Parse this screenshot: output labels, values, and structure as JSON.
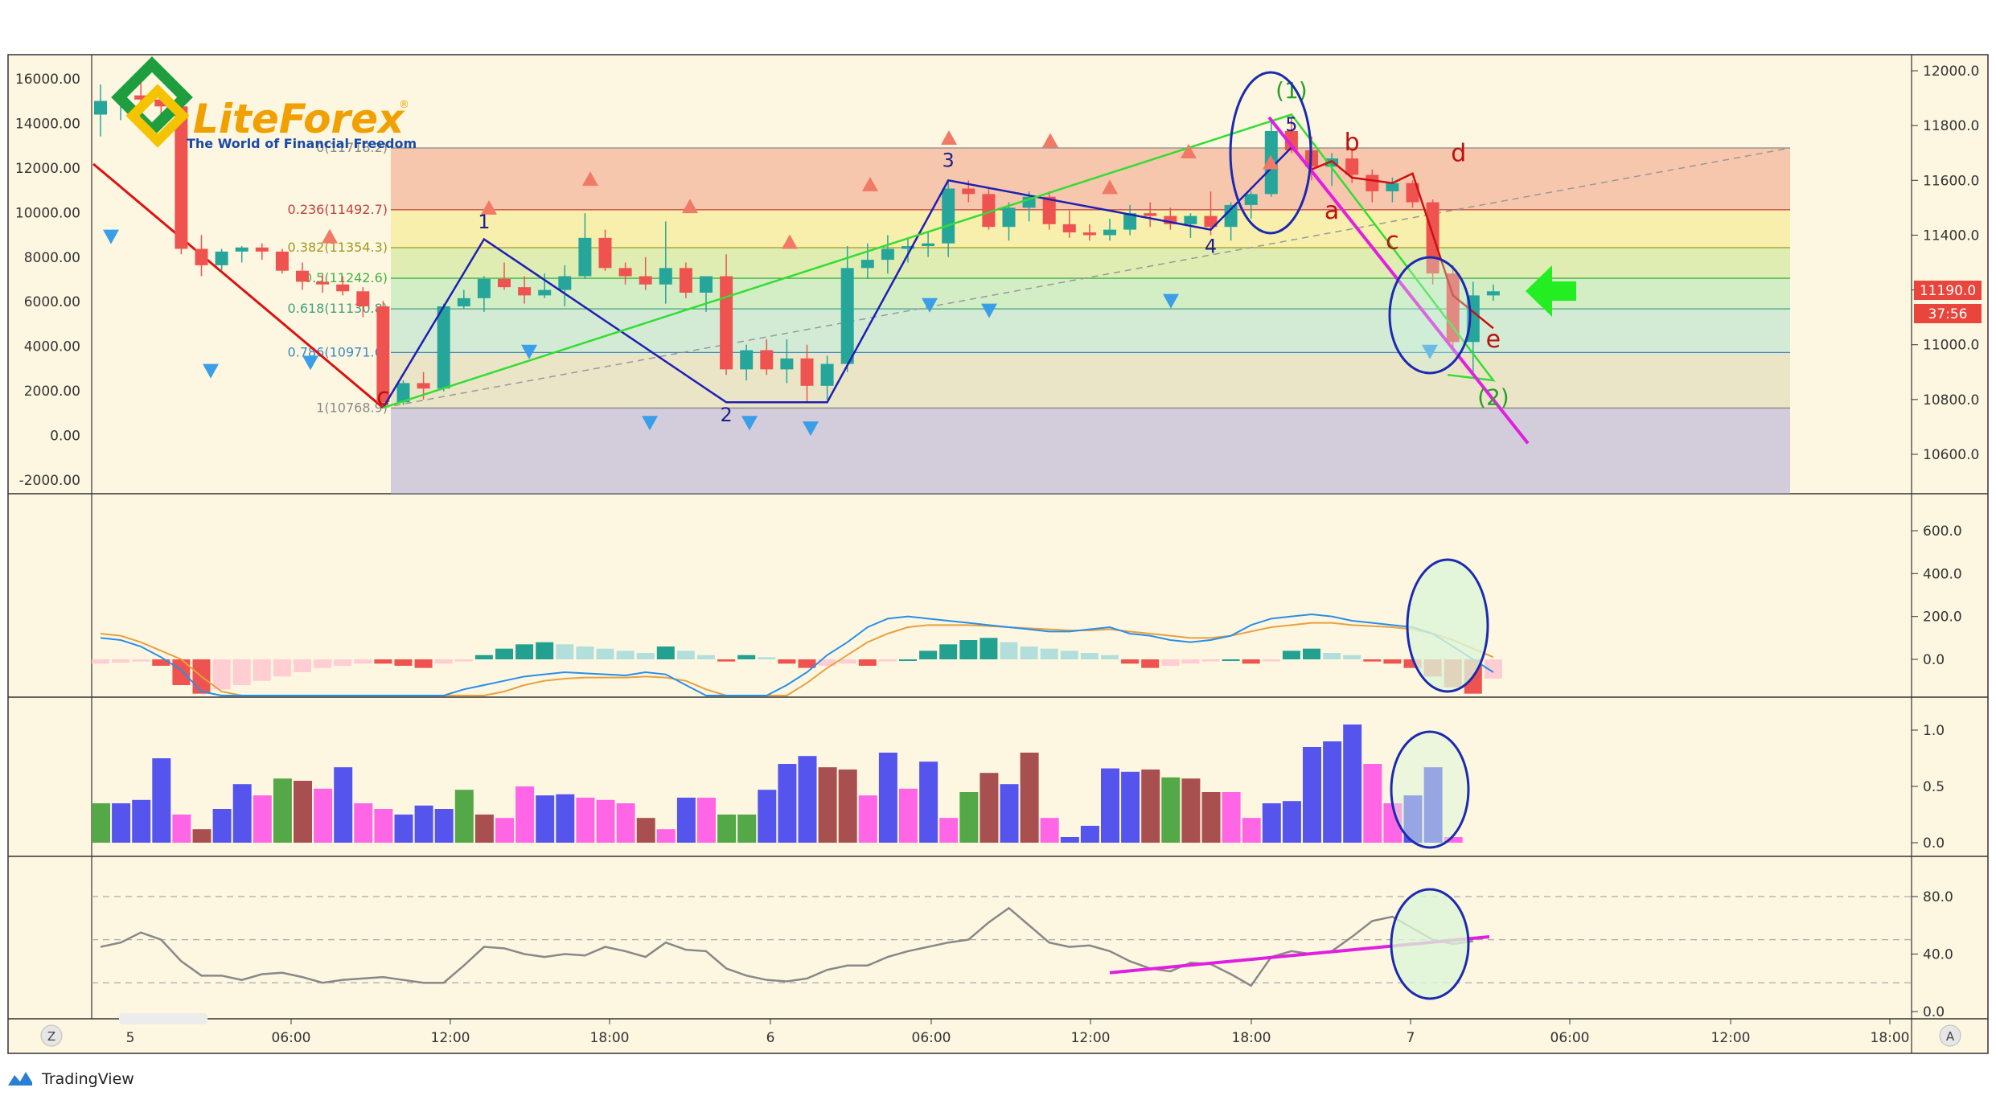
{
  "brand": {
    "logo_text": "LiteForex",
    "logo_reg": "®",
    "tagline": "The World of Financial Freedom",
    "footer": "TradingView"
  },
  "price_badge": {
    "value": "11190.0",
    "timer": "37:56"
  },
  "colors": {
    "background": "#fdf7e1",
    "bull": "#26a69a",
    "bear": "#ef5350",
    "wave_blue": "#1f1fb4",
    "wave_green": "#33dd33",
    "wave_red": "#cc1111",
    "magenta": "#e020e0",
    "ellipse": "#1c2ab0"
  },
  "icons": {
    "left_button": "Z",
    "right_button": "A",
    "arrow": "green-left-arrow-icon"
  },
  "chart_data": [
    {
      "type": "candlestick",
      "panel": "price",
      "left_axis": {
        "ticks": [
          "16000.00",
          "14000.00",
          "12000.00",
          "10000.00",
          "8000.00",
          "6000.00",
          "4000.00",
          "2000.00",
          "0.00",
          "-2000.00"
        ],
        "ylim": [
          -2000,
          16000
        ]
      },
      "right_axis": {
        "ticks": [
          "12000.0",
          "11800.0",
          "11600.0",
          "11400.0",
          "11200.0",
          "11000.0",
          "10800.0",
          "10600.0"
        ],
        "ylim": [
          10600,
          12000
        ]
      },
      "x_ticks": [
        "5",
        "06:00",
        "12:00",
        "18:00",
        "6",
        "06:00",
        "12:00",
        "18:00",
        "7",
        "06:00",
        "12:00",
        "18:00"
      ],
      "candles": [
        [
          11840,
          11950,
          11760,
          11890
        ],
        [
          11890,
          11935,
          11820,
          11910
        ],
        [
          11910,
          11960,
          11880,
          11895
        ],
        [
          11895,
          11920,
          11810,
          11870
        ],
        [
          11870,
          11940,
          11330,
          11350
        ],
        [
          11350,
          11400,
          11250,
          11290
        ],
        [
          11290,
          11350,
          11270,
          11340
        ],
        [
          11340,
          11360,
          11300,
          11355
        ],
        [
          11355,
          11370,
          11310,
          11340
        ],
        [
          11340,
          11350,
          11260,
          11270
        ],
        [
          11270,
          11300,
          11200,
          11230
        ],
        [
          11230,
          11260,
          11190,
          11220
        ],
        [
          11220,
          11250,
          11180,
          11195
        ],
        [
          11195,
          11210,
          11100,
          11140
        ],
        [
          11140,
          11160,
          10770,
          10790
        ],
        [
          10790,
          10870,
          10780,
          10860
        ],
        [
          10860,
          10900,
          10800,
          10840
        ],
        [
          10840,
          11150,
          10830,
          11140
        ],
        [
          11140,
          11200,
          11130,
          11170
        ],
        [
          11170,
          11250,
          11120,
          11240
        ],
        [
          11240,
          11300,
          11200,
          11210
        ],
        [
          11210,
          11250,
          11150,
          11180
        ],
        [
          11180,
          11260,
          11170,
          11200
        ],
        [
          11200,
          11290,
          11140,
          11250
        ],
        [
          11250,
          11480,
          11240,
          11390
        ],
        [
          11390,
          11420,
          11270,
          11280
        ],
        [
          11280,
          11300,
          11220,
          11250
        ],
        [
          11250,
          11320,
          11200,
          11220
        ],
        [
          11220,
          11450,
          11150,
          11280
        ],
        [
          11280,
          11300,
          11170,
          11190
        ],
        [
          11190,
          11250,
          11120,
          11250
        ],
        [
          11250,
          11330,
          10890,
          10910
        ],
        [
          10910,
          11000,
          10870,
          10980
        ],
        [
          10980,
          11020,
          10890,
          10910
        ],
        [
          10910,
          11020,
          10860,
          10950
        ],
        [
          10950,
          11000,
          10790,
          10850
        ],
        [
          10850,
          10960,
          10800,
          10930
        ],
        [
          10930,
          11360,
          10900,
          11280
        ],
        [
          11280,
          11370,
          11240,
          11310
        ],
        [
          11310,
          11400,
          11260,
          11350
        ],
        [
          11350,
          11390,
          11300,
          11360
        ],
        [
          11360,
          11410,
          11320,
          11370
        ],
        [
          11370,
          11600,
          11320,
          11570
        ],
        [
          11570,
          11600,
          11520,
          11550
        ],
        [
          11550,
          11570,
          11420,
          11430
        ],
        [
          11430,
          11520,
          11380,
          11500
        ],
        [
          11500,
          11560,
          11450,
          11540
        ],
        [
          11540,
          11560,
          11420,
          11440
        ],
        [
          11440,
          11490,
          11390,
          11410
        ],
        [
          11410,
          11440,
          11380,
          11400
        ],
        [
          11400,
          11460,
          11380,
          11420
        ],
        [
          11420,
          11510,
          11400,
          11480
        ],
        [
          11480,
          11520,
          11430,
          11470
        ],
        [
          11470,
          11500,
          11420,
          11440
        ],
        [
          11440,
          11480,
          11390,
          11470
        ],
        [
          11470,
          11560,
          11400,
          11430
        ],
        [
          11430,
          11520,
          11380,
          11510
        ],
        [
          11510,
          11560,
          11460,
          11550
        ],
        [
          11550,
          11820,
          11540,
          11780
        ],
        [
          11780,
          11830,
          11700,
          11710
        ],
        [
          11710,
          11760,
          11600,
          11650
        ],
        [
          11650,
          11700,
          11580,
          11680
        ],
        [
          11680,
          11720,
          11590,
          11620
        ],
        [
          11620,
          11640,
          11520,
          11560
        ],
        [
          11560,
          11610,
          11520,
          11590
        ],
        [
          11590,
          11600,
          11500,
          11520
        ],
        [
          11520,
          11530,
          11220,
          11260
        ],
        [
          11260,
          11290,
          10990,
          11010
        ],
        [
          11010,
          11230,
          10900,
          11180
        ],
        [
          11180,
          11220,
          11160,
          11195
        ]
      ],
      "fibonacci": [
        {
          "label": "0(11718.2)",
          "value": 11718.2
        },
        {
          "label": "0.236(11492.7)",
          "value": 11492.7
        },
        {
          "label": "0.382(11354.3)",
          "value": 11354.3
        },
        {
          "label": "0.5(11242.6)",
          "value": 11242.6
        },
        {
          "label": "0.618(11130.8)",
          "value": 11130.8
        },
        {
          "label": "0.786(10971.6)",
          "value": 10971.6
        },
        {
          "label": "1(10768.9)",
          "value": 10768.9
        }
      ],
      "wave_labels": {
        "blue": [
          "1",
          "2",
          "3",
          "4",
          "5"
        ],
        "red": [
          "c",
          "a",
          "b",
          "c",
          "d",
          "e"
        ],
        "green": [
          "(1)",
          "(2)"
        ]
      }
    },
    {
      "type": "bar+line",
      "panel": "macd",
      "ticks": [
        "600.0",
        "400.0",
        "200.0",
        "0.0"
      ],
      "ylim": [
        -250,
        700
      ],
      "histogram": [
        -20,
        -15,
        -10,
        -30,
        -120,
        -160,
        -140,
        -120,
        -100,
        -80,
        -60,
        -40,
        -30,
        -20,
        -20,
        -30,
        -40,
        -20,
        -10,
        20,
        50,
        70,
        80,
        70,
        60,
        50,
        40,
        30,
        60,
        40,
        20,
        -10,
        20,
        10,
        -20,
        -40,
        -30,
        -20,
        -30,
        -10,
        0,
        40,
        70,
        90,
        100,
        80,
        60,
        50,
        40,
        30,
        20,
        -20,
        -40,
        -30,
        -20,
        -10,
        0,
        -20,
        -10,
        40,
        50,
        30,
        20,
        -10,
        -20,
        -40,
        -80,
        -130,
        -160,
        -90
      ],
      "macd": [
        100,
        90,
        60,
        10,
        -50,
        -150,
        -250,
        -320,
        -380,
        -420,
        -440,
        -450,
        -460,
        -440,
        -400,
        -330,
        -240,
        -180,
        -140,
        -120,
        -100,
        -80,
        -70,
        -60,
        -65,
        -70,
        -75,
        -60,
        -70,
        -120,
        -180,
        -220,
        -200,
        -200,
        -120,
        -60,
        20,
        80,
        150,
        190,
        200,
        190,
        180,
        170,
        160,
        150,
        140,
        130,
        130,
        140,
        150,
        120,
        110,
        90,
        80,
        90,
        110,
        160,
        190,
        200,
        210,
        200,
        180,
        170,
        160,
        150,
        120,
        60,
        0,
        -60
      ],
      "signal": [
        120,
        110,
        80,
        40,
        0,
        -80,
        -150,
        -210,
        -270,
        -320,
        -350,
        -380,
        -400,
        -410,
        -400,
        -370,
        -320,
        -270,
        -220,
        -180,
        -150,
        -120,
        -100,
        -90,
        -85,
        -85,
        -85,
        -80,
        -85,
        -100,
        -140,
        -180,
        -200,
        -210,
        -170,
        -110,
        -40,
        20,
        80,
        120,
        150,
        160,
        160,
        160,
        155,
        150,
        145,
        140,
        135,
        135,
        140,
        130,
        120,
        110,
        100,
        100,
        110,
        130,
        150,
        160,
        170,
        170,
        160,
        155,
        150,
        140,
        120,
        90,
        50,
        10
      ]
    },
    {
      "type": "bar",
      "panel": "volume",
      "ticks": [
        "1.0",
        "0.5",
        "0.0"
      ],
      "ylim": [
        0,
        1.1
      ],
      "values": [
        0.35,
        0.35,
        0.38,
        0.75,
        0.25,
        0.12,
        0.3,
        0.52,
        0.42,
        0.57,
        0.55,
        0.48,
        0.67,
        0.35,
        0.3,
        0.25,
        0.33,
        0.3,
        0.47,
        0.25,
        0.22,
        0.5,
        0.42,
        0.43,
        0.4,
        0.38,
        0.35,
        0.22,
        0.12,
        0.4,
        0.4,
        0.25,
        0.25,
        0.47,
        0.7,
        0.77,
        0.67,
        0.65,
        0.42,
        0.8,
        0.48,
        0.72,
        0.22,
        0.45,
        0.62,
        0.52,
        0.8,
        0.22,
        0.05,
        0.15,
        0.66,
        0.63,
        0.65,
        0.58,
        0.57,
        0.45,
        0.45,
        0.22,
        0.35,
        0.37,
        0.85,
        0.9,
        1.05,
        0.7,
        0.35,
        0.42,
        0.67,
        0.05
      ],
      "colors": [
        "g",
        "b",
        "b",
        "b",
        "p",
        "r",
        "b",
        "b",
        "p",
        "g",
        "r",
        "p",
        "b",
        "p",
        "p",
        "b",
        "b",
        "b",
        "g",
        "r",
        "p",
        "p",
        "b",
        "b",
        "p",
        "p",
        "p",
        "r",
        "p",
        "b",
        "p",
        "g",
        "g",
        "b",
        "b",
        "b",
        "r",
        "r",
        "p",
        "b",
        "p",
        "b",
        "p",
        "g",
        "r",
        "b",
        "r",
        "p",
        "b",
        "b",
        "b",
        "b",
        "r",
        "g",
        "r",
        "r",
        "p",
        "p",
        "b",
        "b",
        "b",
        "b",
        "b",
        "p",
        "p",
        "b",
        "b",
        "p"
      ]
    },
    {
      "type": "line",
      "panel": "oscillator",
      "ticks": [
        "80.0",
        "40.0",
        "0.0"
      ],
      "ylim": [
        0,
        90
      ],
      "levels": [
        80,
        50,
        20
      ],
      "values": [
        45,
        48,
        55,
        50,
        35,
        25,
        25,
        22,
        26,
        27,
        24,
        20,
        22,
        23,
        24,
        22,
        20,
        20,
        32,
        45,
        44,
        40,
        38,
        40,
        39,
        45,
        42,
        38,
        48,
        43,
        42,
        30,
        25,
        22,
        21,
        23,
        29,
        32,
        32,
        38,
        42,
        45,
        48,
        50,
        62,
        72,
        60,
        48,
        45,
        46,
        42,
        35,
        30,
        28,
        34,
        33,
        26,
        18,
        38,
        42,
        40,
        42,
        52,
        63,
        66,
        58,
        50,
        47,
        49
      ]
    }
  ]
}
